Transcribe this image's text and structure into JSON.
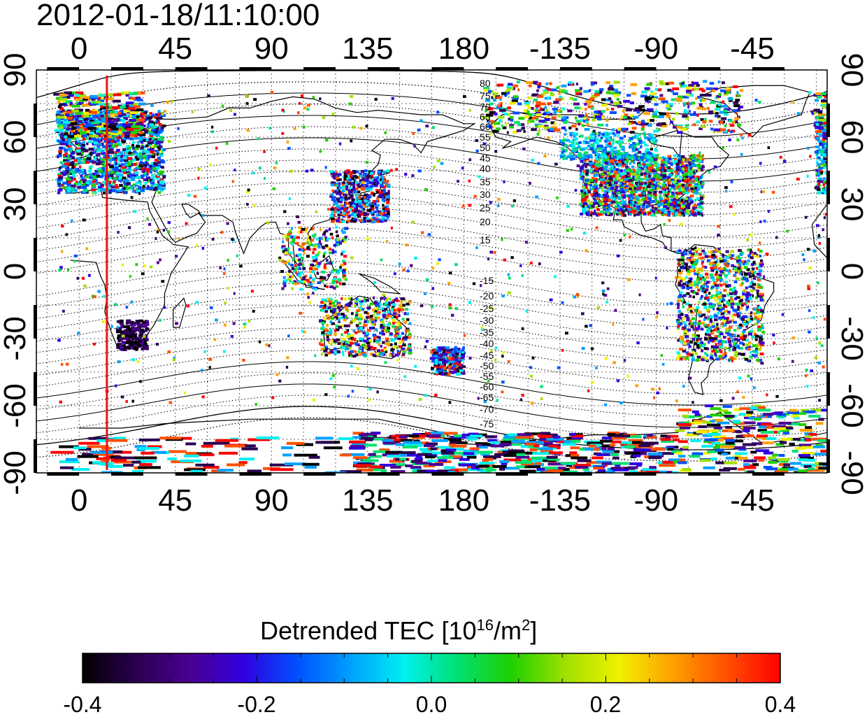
{
  "title": "2012-01-18/11:10:00",
  "map": {
    "lon_ticks_top": [
      "0",
      "45",
      "90",
      "135",
      "180",
      "-135",
      "-90",
      "-45"
    ],
    "lon_ticks_bottom": [
      "0",
      "45",
      "90",
      "135",
      "180",
      "-135",
      "-90",
      "-45"
    ],
    "lat_ticks_left": [
      "90",
      "60",
      "30",
      "0",
      "-30",
      "-60",
      "-90"
    ],
    "lat_ticks_right": [
      "90",
      "60",
      "30",
      "0",
      "-30",
      "-60",
      "-90"
    ],
    "lon_range": [
      -20,
      350
    ],
    "lat_range": [
      -90,
      90
    ],
    "terminator_lon": 13,
    "terminator_color": "#e8141a",
    "magnetic_contours_north": [
      "80",
      "75",
      "70",
      "65",
      "60",
      "55",
      "50",
      "45",
      "40",
      "35",
      "30",
      "25",
      "20",
      "15"
    ],
    "magnetic_contours_south": [
      "-15",
      "-20",
      "-25",
      "-30",
      "-35",
      "-40",
      "-45",
      "-50",
      "-55",
      "-60",
      "-65",
      "-70",
      "-75"
    ]
  },
  "colorbar": {
    "title_main": "Detrended TEC  [10",
    "title_exp": "16",
    "title_mid": "/m",
    "title_exp2": "2",
    "title_end": "]",
    "min": -0.4,
    "max": 0.4,
    "tick_labels": [
      "-0.4",
      "-0.2",
      "0.0",
      "0.2",
      "0.4"
    ],
    "colors": [
      "#000000",
      "#2a0050",
      "#4b0090",
      "#3000e0",
      "#0050ff",
      "#00a0ff",
      "#00f0f0",
      "#00e070",
      "#20d000",
      "#a0e000",
      "#f0f000",
      "#ffa000",
      "#ff5000",
      "#ff0000"
    ]
  }
}
